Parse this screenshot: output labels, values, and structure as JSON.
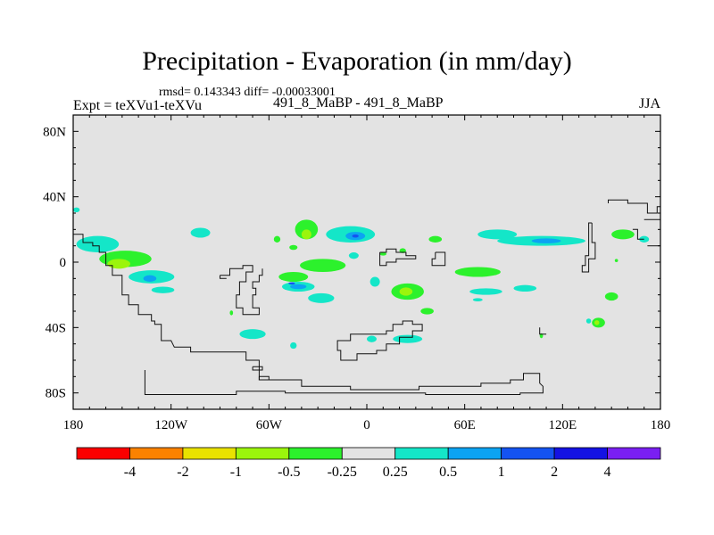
{
  "title": "Precipitation - Evaporation (in mm/day)",
  "subtitle": {
    "stats": "rmsd= 0.143343 diff= -0.00033001",
    "left": "Expt = teXVu1-teXVu",
    "center": "491_8_MaBP - 491_8_MaBP",
    "right": "JJA"
  },
  "chart_data": {
    "type": "heatmap",
    "title": "Precipitation - Evaporation (in mm/day)",
    "xlabel": "",
    "ylabel": "",
    "xlim": [
      -180,
      180
    ],
    "ylim": [
      -90,
      90
    ],
    "x_ticks": [
      {
        "value": -180,
        "label": "180"
      },
      {
        "value": -120,
        "label": "120W"
      },
      {
        "value": -60,
        "label": "60W"
      },
      {
        "value": 0,
        "label": "0"
      },
      {
        "value": 60,
        "label": "60E"
      },
      {
        "value": 120,
        "label": "120E"
      },
      {
        "value": 180,
        "label": "180"
      }
    ],
    "y_ticks": [
      {
        "value": 80,
        "label": "80N"
      },
      {
        "value": 40,
        "label": "40N"
      },
      {
        "value": 0,
        "label": "0"
      },
      {
        "value": -40,
        "label": "40S"
      },
      {
        "value": -80,
        "label": "80S"
      }
    ],
    "background_color": "#e3e3e3",
    "colorbar": {
      "colors": [
        "#fb0000",
        "#fb8200",
        "#e9e200",
        "#9bf50c",
        "#2cf12c",
        "#e3e3e3",
        "#14e6c8",
        "#0ca3f2",
        "#1453f1",
        "#1412e3",
        "#7a1ff2"
      ],
      "labels": [
        "-4",
        "-2",
        "-1",
        "-0.5",
        "-0.25",
        "0.25",
        "0.5",
        "1",
        "2",
        "4"
      ]
    },
    "anomaly_regions": [
      {
        "name": "central-pacific-north",
        "lon": -165,
        "lat": 11,
        "rx": 13,
        "ry": 5,
        "level": 0.25
      },
      {
        "name": "east-pacific-itcz",
        "lon": -148,
        "lat": 2,
        "rx": 16,
        "ry": 5,
        "level": -0.25
      },
      {
        "name": "east-pacific-core",
        "lon": -152,
        "lat": -1,
        "rx": 7,
        "ry": 3,
        "level": -0.5
      },
      {
        "name": "east-pacific-south",
        "lon": -132,
        "lat": -9,
        "rx": 14,
        "ry": 4,
        "level": 0.25
      },
      {
        "name": "east-pacific-south-core",
        "lon": -133,
        "lat": -10,
        "rx": 4,
        "ry": 2,
        "level": 0.5
      },
      {
        "name": "mexico-pacific",
        "lon": -102,
        "lat": 18,
        "rx": 6,
        "ry": 3,
        "level": 0.25
      },
      {
        "name": "se-pacific",
        "lon": -125,
        "lat": -17,
        "rx": 7,
        "ry": 2,
        "level": 0.25
      },
      {
        "name": "south-america-small",
        "lon": -83,
        "lat": -31,
        "rx": 1,
        "ry": 1.5,
        "level": -0.25
      },
      {
        "name": "south-atlantic-midlat",
        "lon": -70,
        "lat": -44,
        "rx": 8,
        "ry": 3,
        "level": 0.25
      },
      {
        "name": "south-atlantic-midlat-2",
        "lon": -45,
        "lat": -51,
        "rx": 2,
        "ry": 2,
        "level": 0.25
      },
      {
        "name": "north-atlantic-small",
        "lon": -55,
        "lat": 14,
        "rx": 2,
        "ry": 2,
        "level": -0.25
      },
      {
        "name": "atlantic-north-1",
        "lon": -37,
        "lat": 20,
        "rx": 7,
        "ry": 6,
        "level": -0.25
      },
      {
        "name": "atlantic-north-1-core",
        "lon": -37,
        "lat": 17,
        "rx": 3,
        "ry": 3,
        "level": -0.5
      },
      {
        "name": "atlantic-north-2",
        "lon": -10,
        "lat": 17,
        "rx": 15,
        "ry": 5,
        "level": 0.25
      },
      {
        "name": "atlantic-north-2-core",
        "lon": -7,
        "lat": 16,
        "rx": 6,
        "ry": 2.5,
        "level": 0.5
      },
      {
        "name": "atlantic-north-2-max",
        "lon": -7,
        "lat": 16,
        "rx": 2,
        "ry": 1,
        "level": 1
      },
      {
        "name": "atlantic-equator",
        "lon": -27,
        "lat": -2,
        "rx": 14,
        "ry": 4,
        "level": -0.25
      },
      {
        "name": "atlantic-equator-2",
        "lon": -45,
        "lat": -9,
        "rx": 9,
        "ry": 3,
        "level": -0.25
      },
      {
        "name": "atlantic-south-blue",
        "lon": -42,
        "lat": -15,
        "rx": 10,
        "ry": 3,
        "level": 0.25
      },
      {
        "name": "atlantic-south-blue-core",
        "lon": -42,
        "lat": -15,
        "rx": 5,
        "ry": 1.5,
        "level": 0.5
      },
      {
        "name": "atlantic-south-blue-max",
        "lon": -46,
        "lat": -13,
        "rx": 2,
        "ry": 0.7,
        "level": 1
      },
      {
        "name": "atlantic-south-2",
        "lon": -28,
        "lat": -22,
        "rx": 8,
        "ry": 3,
        "level": 0.25
      },
      {
        "name": "guinea",
        "lon": -45,
        "lat": 9,
        "rx": 2.5,
        "ry": 1.5,
        "level": -0.25
      },
      {
        "name": "africa-small-1",
        "lon": -8,
        "lat": 4,
        "rx": 3,
        "ry": 2,
        "level": 0.25
      },
      {
        "name": "africa-small-2",
        "lon": 10,
        "lat": 5,
        "rx": 2,
        "ry": 1,
        "level": -0.25
      },
      {
        "name": "north-africa-small",
        "lon": 22,
        "lat": 7,
        "rx": 2,
        "ry": 1.5,
        "level": -0.25
      },
      {
        "name": "arabia",
        "lon": 42,
        "lat": 14,
        "rx": 4,
        "ry": 2,
        "level": -0.25
      },
      {
        "name": "indian-ocean-small",
        "lon": 5,
        "lat": -12,
        "rx": 3,
        "ry": 3,
        "level": 0.25
      },
      {
        "name": "indian-ocean-1",
        "lon": 25,
        "lat": -18,
        "rx": 10,
        "ry": 5,
        "level": -0.25
      },
      {
        "name": "indian-ocean-1-core",
        "lon": 24,
        "lat": -18,
        "rx": 4,
        "ry": 2.5,
        "level": -0.5
      },
      {
        "name": "indian-ocean-2",
        "lon": 37,
        "lat": -30,
        "rx": 4,
        "ry": 2,
        "level": -0.25
      },
      {
        "name": "indian-south",
        "lon": 25,
        "lat": -47,
        "rx": 9,
        "ry": 2.5,
        "level": 0.25
      },
      {
        "name": "indian-south-2",
        "lon": 3,
        "lat": -47,
        "rx": 3,
        "ry": 2,
        "level": 0.25
      },
      {
        "name": "tethys-north",
        "lon": 80,
        "lat": 17,
        "rx": 12,
        "ry": 3,
        "level": 0.25
      },
      {
        "name": "tethys-north-2",
        "lon": 107,
        "lat": 13,
        "rx": 27,
        "ry": 3,
        "level": 0.25
      },
      {
        "name": "tethys-north-2-core",
        "lon": 110,
        "lat": 13,
        "rx": 9,
        "ry": 1.5,
        "level": 0.5
      },
      {
        "name": "tethys-north-3",
        "lon": 157,
        "lat": 17,
        "rx": 7,
        "ry": 3,
        "level": -0.25
      },
      {
        "name": "east-tethys",
        "lon": 170,
        "lat": 14,
        "rx": 3,
        "ry": 2,
        "level": 0.25
      },
      {
        "name": "tethys-green",
        "lon": 68,
        "lat": -6,
        "rx": 14,
        "ry": 3,
        "level": -0.25
      },
      {
        "name": "tethys-south-1",
        "lon": 73,
        "lat": -18,
        "rx": 10,
        "ry": 2,
        "level": 0.25
      },
      {
        "name": "tethys-south-small",
        "lon": 68,
        "lat": -23,
        "rx": 3,
        "ry": 1,
        "level": 0.25
      },
      {
        "name": "tethys-south-2",
        "lon": 97,
        "lat": -16,
        "rx": 7,
        "ry": 2,
        "level": 0.25
      },
      {
        "name": "east-small-green",
        "lon": 150,
        "lat": -21,
        "rx": 4,
        "ry": 2.5,
        "level": -0.25
      },
      {
        "name": "east-south-green",
        "lon": 142,
        "lat": -37,
        "rx": 4,
        "ry": 3,
        "level": -0.25
      },
      {
        "name": "east-south-green-core",
        "lon": 141,
        "lat": -37,
        "rx": 1.5,
        "ry": 1.5,
        "level": -0.5
      },
      {
        "name": "east-cyan-small",
        "lon": 136,
        "lat": -36,
        "rx": 1.5,
        "ry": 1.5,
        "level": 0.25
      },
      {
        "name": "far-east-small",
        "lon": 153,
        "lat": 1,
        "rx": 1,
        "ry": 1,
        "level": -0.25
      },
      {
        "name": "tiny-aus",
        "lon": 107,
        "lat": -45,
        "rx": 1,
        "ry": 1.5,
        "level": -0.25
      },
      {
        "name": "dateline-north",
        "lon": -178,
        "lat": 32,
        "rx": 2,
        "ry": 1.5,
        "level": 0.25
      }
    ],
    "coastlines": [
      [
        [
          -180,
          17
        ],
        [
          -174,
          17
        ],
        [
          -174,
          12
        ],
        [
          -168,
          12
        ],
        [
          -168,
          10
        ],
        [
          -164,
          10
        ],
        [
          -164,
          6
        ],
        [
          -160,
          6
        ],
        [
          -160,
          2
        ],
        [
          -160,
          -2
        ],
        [
          -156,
          -2
        ],
        [
          -156,
          -8
        ],
        [
          -150,
          -8
        ],
        [
          -150,
          -16
        ],
        [
          -150,
          -20
        ],
        [
          -146,
          -20
        ],
        [
          -146,
          -26
        ],
        [
          -140,
          -26
        ],
        [
          -140,
          -32
        ],
        [
          -132,
          -32
        ],
        [
          -132,
          -36
        ],
        [
          -130,
          -36
        ],
        [
          -130,
          -38
        ],
        [
          -126,
          -38
        ],
        [
          -126,
          -48
        ],
        [
          -120,
          -48
        ],
        [
          -118,
          -52
        ],
        [
          -108,
          -52
        ],
        [
          -108,
          -55
        ],
        [
          -74,
          -55
        ],
        [
          -74,
          -60
        ],
        [
          -66,
          -60
        ],
        [
          -66,
          -72
        ],
        [
          -40,
          -72
        ],
        [
          -40,
          -76
        ],
        [
          -10,
          -76
        ],
        [
          -10,
          -78
        ],
        [
          32,
          -78
        ],
        [
          32,
          -76
        ],
        [
          70,
          -76
        ],
        [
          70,
          -74
        ],
        [
          88,
          -74
        ],
        [
          88,
          -72
        ],
        [
          96,
          -72
        ],
        [
          96,
          -68
        ],
        [
          106,
          -68
        ],
        [
          106,
          -74
        ],
        [
          108,
          -76
        ],
        [
          108,
          -80
        ],
        [
          94,
          -80
        ],
        [
          94,
          -81
        ],
        [
          36,
          -81
        ],
        [
          36,
          -80
        ],
        [
          -50,
          -80
        ],
        [
          -50,
          -79
        ],
        [
          -80,
          -79
        ],
        [
          -80,
          -81
        ],
        [
          -136,
          -81
        ],
        [
          -136,
          -76
        ],
        [
          -136,
          -66
        ]
      ],
      [
        [
          -90,
          -8
        ],
        [
          -84,
          -8
        ],
        [
          -84,
          -4
        ],
        [
          -76,
          -4
        ],
        [
          -76,
          -2
        ],
        [
          -70,
          -2
        ],
        [
          -70,
          -6
        ],
        [
          -74,
          -6
        ],
        [
          -74,
          -12
        ],
        [
          -78,
          -12
        ],
        [
          -78,
          -20
        ],
        [
          -80,
          -20
        ],
        [
          -80,
          -28
        ],
        [
          -76,
          -28
        ],
        [
          -76,
          -32
        ],
        [
          -66,
          -32
        ],
        [
          -66,
          -28
        ],
        [
          -70,
          -28
        ],
        [
          -70,
          -20
        ],
        [
          -68,
          -20
        ],
        [
          -68,
          -16
        ],
        [
          -70,
          -16
        ],
        [
          -70,
          -12
        ],
        [
          -66,
          -12
        ],
        [
          -66,
          -8
        ],
        [
          -64,
          -8
        ],
        [
          -64,
          -4
        ]
      ],
      [
        [
          -86,
          -10
        ],
        [
          -90,
          -10
        ],
        [
          -90,
          -8
        ]
      ],
      [
        [
          10,
          -44
        ],
        [
          12,
          -44
        ],
        [
          12,
          -42
        ],
        [
          16,
          -42
        ],
        [
          16,
          -38
        ],
        [
          22,
          -38
        ],
        [
          22,
          -36
        ],
        [
          28,
          -36
        ],
        [
          28,
          -38
        ],
        [
          34,
          -38
        ],
        [
          34,
          -42
        ],
        [
          28,
          -42
        ],
        [
          28,
          -46
        ],
        [
          20,
          -46
        ],
        [
          20,
          -50
        ],
        [
          12,
          -50
        ],
        [
          12,
          -54
        ],
        [
          6,
          -54
        ],
        [
          6,
          -56
        ],
        [
          -6,
          -56
        ],
        [
          -6,
          -60
        ],
        [
          -16,
          -60
        ],
        [
          -16,
          -54
        ],
        [
          -18,
          -54
        ],
        [
          -18,
          -48
        ],
        [
          -10,
          -48
        ],
        [
          -10,
          -44
        ],
        [
          10,
          -44
        ]
      ],
      [
        [
          8,
          6
        ],
        [
          12,
          6
        ],
        [
          12,
          8
        ],
        [
          18,
          8
        ],
        [
          18,
          6
        ],
        [
          24,
          6
        ],
        [
          24,
          4
        ],
        [
          30,
          4
        ],
        [
          30,
          2
        ],
        [
          18,
          2
        ],
        [
          18,
          0
        ],
        [
          12,
          0
        ],
        [
          12,
          -2
        ],
        [
          8,
          -2
        ],
        [
          8,
          6
        ]
      ],
      [
        [
          42,
          6
        ],
        [
          48,
          6
        ],
        [
          48,
          -2
        ],
        [
          40,
          -2
        ],
        [
          40,
          2
        ],
        [
          42,
          2
        ],
        [
          42,
          6
        ]
      ],
      [
        [
          -70,
          -64
        ],
        [
          -64,
          -64
        ],
        [
          -64,
          -66
        ],
        [
          -70,
          -66
        ],
        [
          -70,
          -64
        ]
      ],
      [
        [
          -66,
          -70
        ],
        [
          -60,
          -70
        ],
        [
          -60,
          -72
        ],
        [
          -66,
          -72
        ],
        [
          -66,
          -70
        ]
      ],
      [
        [
          106,
          -40
        ],
        [
          106,
          -44
        ],
        [
          110,
          -44
        ]
      ],
      [
        [
          138,
          24
        ],
        [
          136,
          24
        ],
        [
          136,
          14
        ],
        [
          136,
          4
        ],
        [
          134,
          4
        ],
        [
          134,
          -2
        ],
        [
          132,
          -2
        ],
        [
          132,
          -6
        ],
        [
          136,
          -6
        ],
        [
          136,
          2
        ],
        [
          140,
          2
        ],
        [
          140,
          8
        ],
        [
          140,
          12
        ],
        [
          138,
          12
        ],
        [
          138,
          18
        ],
        [
          138,
          24
        ]
      ],
      [
        [
          148,
          36
        ],
        [
          148,
          38
        ],
        [
          160,
          38
        ],
        [
          160,
          36
        ],
        [
          172,
          36
        ],
        [
          172,
          30
        ],
        [
          178,
          30
        ],
        [
          178,
          34
        ],
        [
          180,
          34
        ]
      ],
      [
        [
          170,
          26
        ],
        [
          180,
          26
        ]
      ],
      [
        [
          163,
          20
        ],
        [
          166,
          20
        ],
        [
          166,
          14
        ],
        [
          170,
          14
        ]
      ],
      [
        [
          180,
          10
        ],
        [
          172,
          10
        ]
      ]
    ]
  }
}
